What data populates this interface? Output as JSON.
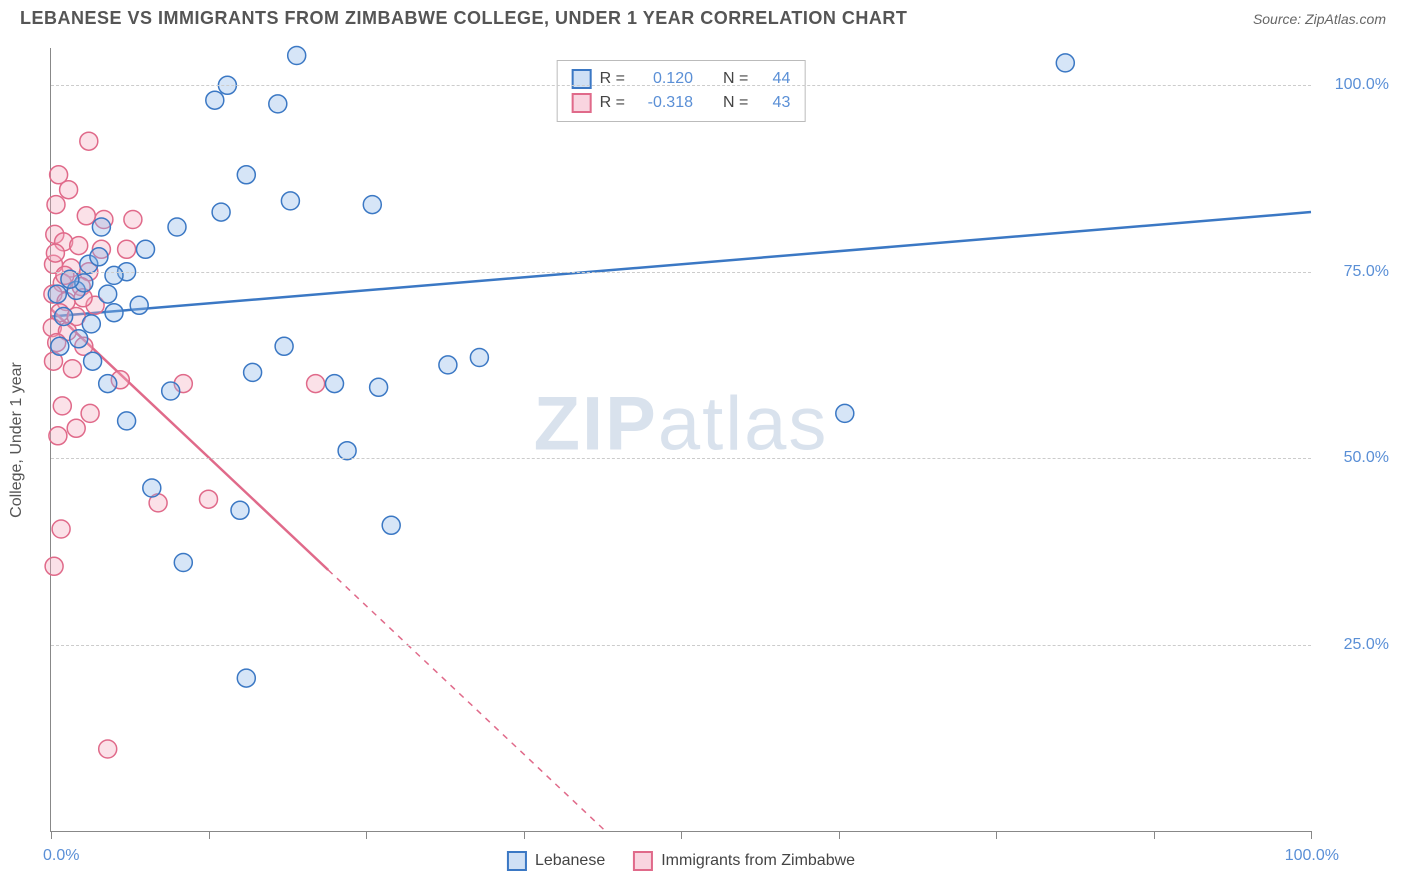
{
  "header": {
    "title": "LEBANESE VS IMMIGRANTS FROM ZIMBABWE COLLEGE, UNDER 1 YEAR CORRELATION CHART",
    "source": "Source: ZipAtlas.com"
  },
  "chart": {
    "type": "scatter",
    "background_color": "#ffffff",
    "grid_color": "#cccccc",
    "axis_color": "#888888",
    "tick_label_color": "#5a8fd6",
    "tick_fontsize": 16,
    "y_axis_title": "College, Under 1 year",
    "y_axis_title_fontsize": 16,
    "y_axis_title_color": "#555555",
    "xlim": [
      0,
      100
    ],
    "ylim": [
      0,
      105
    ],
    "x_ticks": [
      0,
      12.5,
      25,
      37.5,
      50,
      62.5,
      75,
      87.5,
      100
    ],
    "x_tick_labels": {
      "0": "0.0%",
      "100": "100.0%"
    },
    "y_gridlines": [
      25,
      50,
      75,
      100
    ],
    "y_tick_labels": {
      "25": "25.0%",
      "50": "50.0%",
      "75": "75.0%",
      "100": "100.0%"
    },
    "marker_radius": 9,
    "marker_stroke_width": 1.5,
    "marker_fill_opacity": 0.35,
    "line_width": 2.5,
    "watermark": {
      "text_bold": "ZIP",
      "text_light": "atlas",
      "color": "rgba(120,150,190,0.28)",
      "fontsize": 76
    }
  },
  "series": {
    "lebanese": {
      "name": "Lebanese",
      "color_stroke": "#3b78c4",
      "color_fill": "#8ab4e8",
      "R": "0.120",
      "N": "44",
      "trend": {
        "x1": 0,
        "y1": 69,
        "x2": 100,
        "y2": 83,
        "dashed_from_x": null
      },
      "points": [
        [
          80.5,
          103
        ],
        [
          19.5,
          104
        ],
        [
          13,
          98
        ],
        [
          14,
          100
        ],
        [
          18,
          97.5
        ],
        [
          15.5,
          88
        ],
        [
          4,
          81
        ],
        [
          10,
          81
        ],
        [
          13.5,
          83
        ],
        [
          19,
          84.5
        ],
        [
          25.5,
          84
        ],
        [
          3,
          76
        ],
        [
          6,
          75
        ],
        [
          7.5,
          78
        ],
        [
          2,
          72.5
        ],
        [
          4.5,
          72
        ],
        [
          5,
          74.5
        ],
        [
          7,
          70.5
        ],
        [
          1,
          69
        ],
        [
          3.2,
          68
        ],
        [
          0.5,
          72
        ],
        [
          2.6,
          73.5
        ],
        [
          5,
          69.5
        ],
        [
          18.5,
          65
        ],
        [
          16,
          61.5
        ],
        [
          22.5,
          60
        ],
        [
          26,
          59.5
        ],
        [
          31.5,
          62.5
        ],
        [
          34,
          63.5
        ],
        [
          63,
          56
        ],
        [
          8,
          46
        ],
        [
          15,
          43
        ],
        [
          10.5,
          36
        ],
        [
          23.5,
          51
        ],
        [
          27,
          41
        ],
        [
          15.5,
          20.5
        ],
        [
          6,
          55
        ],
        [
          3.3,
          63
        ],
        [
          9.5,
          59
        ],
        [
          4.5,
          60
        ],
        [
          0.7,
          65
        ],
        [
          2.2,
          66
        ],
        [
          1.5,
          74
        ],
        [
          3.8,
          77
        ]
      ]
    },
    "zimbabwe": {
      "name": "Immigrants from Zimbabwe",
      "color_stroke": "#e06a8a",
      "color_fill": "#f4a8be",
      "R": "-0.318",
      "N": "43",
      "trend": {
        "x1": 0,
        "y1": 70,
        "x2": 44,
        "y2": 0,
        "dashed_from_x": 22
      },
      "points": [
        [
          3,
          92.5
        ],
        [
          0.6,
          88
        ],
        [
          1.4,
          86
        ],
        [
          0.4,
          84
        ],
        [
          2.8,
          82.5
        ],
        [
          4.2,
          82
        ],
        [
          6.5,
          82
        ],
        [
          0.3,
          80
        ],
        [
          1.0,
          79
        ],
        [
          2.2,
          78.5
        ],
        [
          4.0,
          78
        ],
        [
          6.0,
          78
        ],
        [
          0.2,
          76
        ],
        [
          1.6,
          75.5
        ],
        [
          3.0,
          75
        ],
        [
          0.9,
          73.5
        ],
        [
          2.4,
          73
        ],
        [
          0.15,
          72
        ],
        [
          1.2,
          71
        ],
        [
          3.5,
          70.5
        ],
        [
          0.7,
          69.5
        ],
        [
          2.0,
          69
        ],
        [
          0.1,
          67.5
        ],
        [
          1.3,
          67
        ],
        [
          0.45,
          65.5
        ],
        [
          2.6,
          65
        ],
        [
          0.2,
          63
        ],
        [
          1.7,
          62
        ],
        [
          5.5,
          60.5
        ],
        [
          10.5,
          60
        ],
        [
          21,
          60
        ],
        [
          0.9,
          57
        ],
        [
          3.1,
          56
        ],
        [
          2.0,
          54
        ],
        [
          0.55,
          53
        ],
        [
          8.5,
          44
        ],
        [
          12.5,
          44.5
        ],
        [
          0.8,
          40.5
        ],
        [
          0.25,
          35.5
        ],
        [
          4.5,
          11.0
        ],
        [
          1.1,
          74.5
        ],
        [
          2.55,
          71.5
        ],
        [
          0.35,
          77.5
        ]
      ]
    }
  },
  "legend_top": {
    "rows": [
      {
        "swatch_stroke": "#3b78c4",
        "swatch_fill": "#cfe0f5",
        "r_label": "R =",
        "r_val": "0.120",
        "n_label": "N =",
        "n_val": "44"
      },
      {
        "swatch_stroke": "#e06a8a",
        "swatch_fill": "#f9d5e0",
        "r_label": "R =",
        "r_val": "-0.318",
        "n_label": "N =",
        "n_val": "43"
      }
    ]
  },
  "legend_bottom": {
    "items": [
      {
        "swatch_stroke": "#3b78c4",
        "swatch_fill": "#cfe0f5",
        "label": "Lebanese"
      },
      {
        "swatch_stroke": "#e06a8a",
        "swatch_fill": "#f9d5e0",
        "label": "Immigrants from Zimbabwe"
      }
    ]
  }
}
